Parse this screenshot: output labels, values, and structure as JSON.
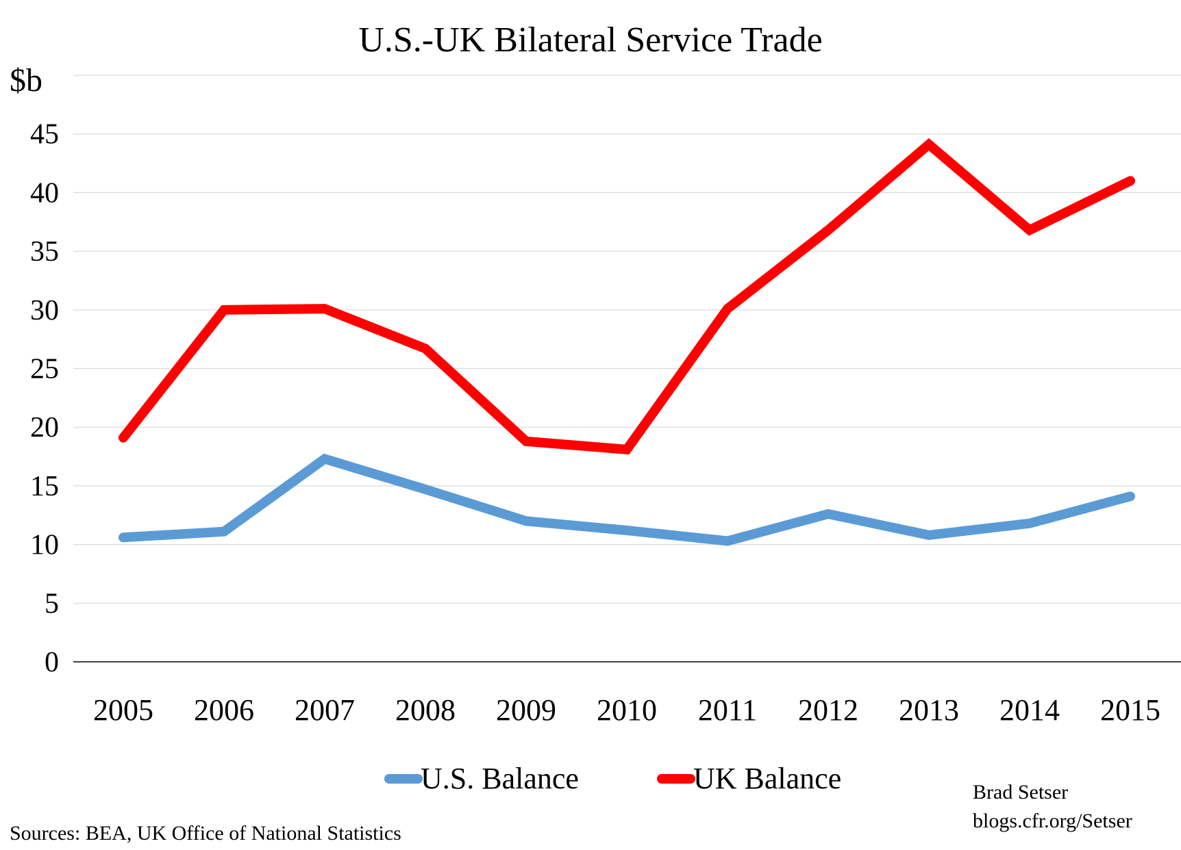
{
  "chart_data": {
    "type": "line",
    "title": "U.S.-UK Bilateral Service Trade",
    "ylabel": "$b",
    "xlabel": "",
    "ylim": [
      0,
      50
    ],
    "yticks": [
      "0",
      "5",
      "10",
      "15",
      "20",
      "25",
      "30",
      "35",
      "40",
      "45"
    ],
    "categories": [
      "2005",
      "2006",
      "2007",
      "2008",
      "2009",
      "2010",
      "2011",
      "2012",
      "2013",
      "2014",
      "2015"
    ],
    "grid": true,
    "legend": "bottom",
    "series": [
      {
        "name": "U.S. Balance",
        "color": "#5B9BD5",
        "values": [
          10.6,
          11.1,
          17.3,
          14.7,
          12.0,
          11.2,
          10.3,
          12.6,
          10.8,
          11.8,
          14.1
        ]
      },
      {
        "name": "UK Balance",
        "color": "#FF0000",
        "values": [
          19.1,
          30.0,
          30.1,
          26.7,
          18.8,
          18.1,
          30.1,
          36.8,
          44.1,
          36.8,
          41.0
        ]
      }
    ]
  },
  "credit": {
    "author": "Brad Setser",
    "site": "blogs.cfr.org/Setser"
  },
  "source_note": "Sources: BEA, UK Office of National Statistics"
}
